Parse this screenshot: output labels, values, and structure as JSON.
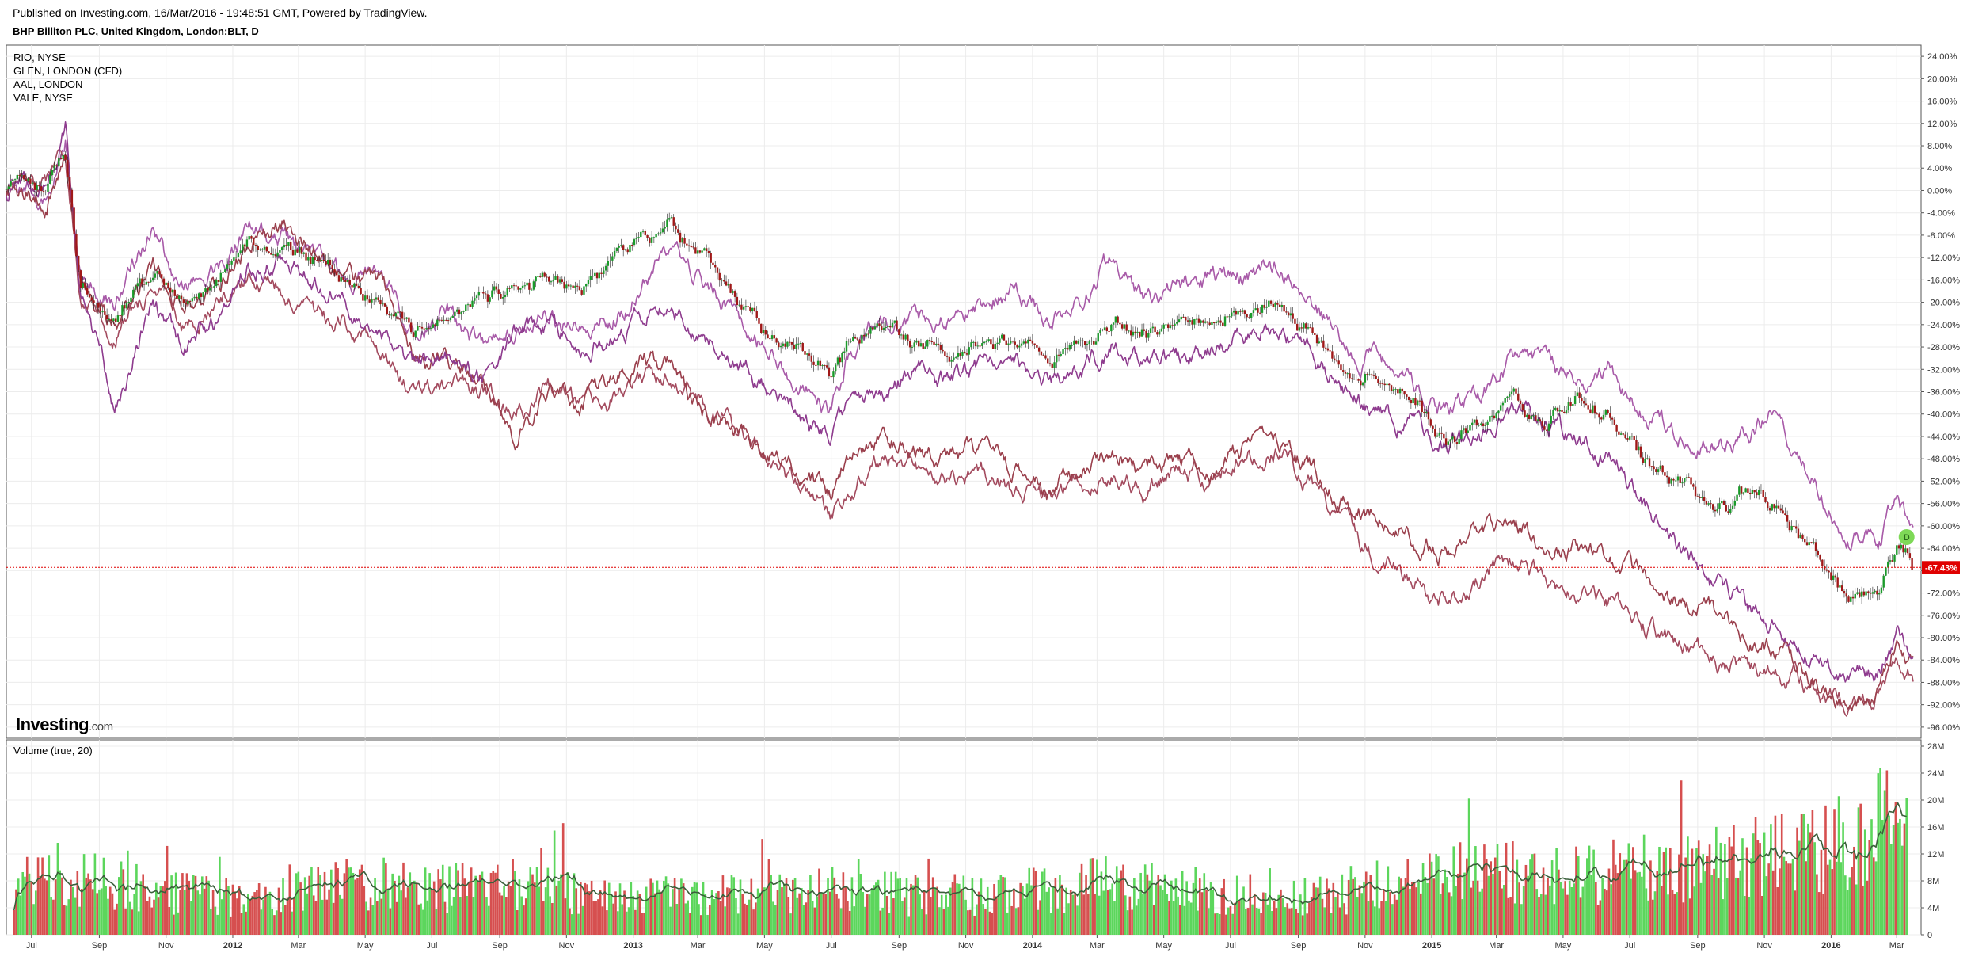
{
  "header": {
    "published": "Published on Investing.com, 16/Mar/2016 - 19:48:51 GMT, Powered by TradingView.",
    "symbol_title": "BHP Billiton PLC, United Kingdom, London:BLT, D"
  },
  "legend": [
    "RIO, NYSE",
    "GLEN, LONDON (CFD)",
    "AAL, LONDON",
    "VALE, NYSE"
  ],
  "volume_label": "Volume (true, 20)",
  "logo": {
    "main": "Investing",
    "suffix": ".com"
  },
  "colors": {
    "up": "#1a9a2a",
    "down": "#a01818",
    "vol_up": "#5cd65c",
    "vol_down": "#d64f4f",
    "ma": "#3a5f3a",
    "rio": "#a85aa8",
    "vale": "#8e3b8e",
    "glen": "#a34a5e",
    "aal": "#9a3f4c",
    "grid": "#ececec",
    "last_marker": "#e00000",
    "dividend": "#7ed957"
  },
  "last_value_label": "-67.43%",
  "dividend_marker": "D",
  "chart_data": [
    {
      "type": "line",
      "title": "BHP Billiton PLC, United Kingdom, London:BLT, D",
      "x_axis": {
        "tick_labels": [
          "Jul",
          "Sep",
          "Nov",
          "2012",
          "Mar",
          "May",
          "Jul",
          "Sep",
          "Nov",
          "2013",
          "Mar",
          "May",
          "Jul",
          "Sep",
          "Nov",
          "2014",
          "Mar",
          "May",
          "Jul",
          "Sep",
          "Nov",
          "2015",
          "Mar",
          "May",
          "Jul",
          "Sep",
          "Nov",
          "2016",
          "Mar"
        ],
        "range": [
          "2011-06-08",
          "2016-03-16"
        ]
      },
      "y_axis": {
        "unit": "%",
        "ylim": [
          -98,
          26
        ],
        "tick_labels": [
          "24.00%",
          "20.00%",
          "16.00%",
          "12.00%",
          "8.00%",
          "4.00%",
          "0.00%",
          "-4.00%",
          "-8.00%",
          "-12.00%",
          "-16.00%",
          "-20.00%",
          "-24.00%",
          "-28.00%",
          "-32.00%",
          "-36.00%",
          "-40.00%",
          "-44.00%",
          "-48.00%",
          "-52.00%",
          "-56.00%",
          "-60.00%",
          "-64.00%",
          "-68.00%",
          "-72.00%",
          "-76.00%",
          "-80.00%",
          "-84.00%",
          "-88.00%",
          "-92.00%",
          "-96.00%"
        ]
      },
      "grid": true,
      "legend_position": "top-left",
      "series": [
        {
          "name": "BLT",
          "style": "candlestick",
          "dates": [
            "2011-06-08",
            "2011-07-15",
            "2011-08-01",
            "2011-08-15",
            "2011-09-15",
            "2011-10-20",
            "2011-11-15",
            "2011-12-15",
            "2012-01-15",
            "2012-02-15",
            "2012-03-15",
            "2012-04-15",
            "2012-05-15",
            "2012-06-15",
            "2012-07-15",
            "2012-08-15",
            "2012-09-15",
            "2012-10-15",
            "2012-11-15",
            "2012-12-15",
            "2013-01-15",
            "2013-02-05",
            "2013-02-20",
            "2013-03-15",
            "2013-04-15",
            "2013-05-15",
            "2013-06-15",
            "2013-07-01",
            "2013-07-15",
            "2013-08-15",
            "2013-09-15",
            "2013-10-15",
            "2013-11-15",
            "2013-12-15",
            "2014-01-15",
            "2014-02-15",
            "2014-03-15",
            "2014-04-15",
            "2014-05-15",
            "2014-06-15",
            "2014-07-15",
            "2014-08-15",
            "2014-09-15",
            "2014-10-15",
            "2014-11-15",
            "2014-12-15",
            "2015-01-15",
            "2015-02-15",
            "2015-03-15",
            "2015-04-15",
            "2015-05-15",
            "2015-06-15",
            "2015-07-15",
            "2015-08-15",
            "2015-09-15",
            "2015-10-15",
            "2015-11-15",
            "2015-12-15",
            "2016-01-20",
            "2016-02-15",
            "2016-03-01",
            "2016-03-16"
          ],
          "values": [
            1,
            0,
            6,
            -18,
            -22,
            -15,
            -20,
            -16,
            -9,
            -10,
            -12,
            -17,
            -20,
            -25,
            -23,
            -20,
            -18,
            -15,
            -17,
            -12,
            -8,
            -6,
            -10,
            -14,
            -22,
            -27,
            -30,
            -33,
            -28,
            -25,
            -26,
            -29,
            -28,
            -26,
            -30,
            -28,
            -24,
            -25,
            -23,
            -24,
            -22,
            -20,
            -26,
            -32,
            -34,
            -38,
            -45,
            -41,
            -36,
            -42,
            -38,
            -40,
            -48,
            -52,
            -57,
            -54,
            -56,
            -64,
            -73,
            -70,
            -63,
            -67.43
          ]
        },
        {
          "name": "RIO, NYSE",
          "style": "line",
          "dates": [
            "2011-06-08",
            "2011-07-15",
            "2011-08-01",
            "2011-08-15",
            "2011-09-15",
            "2011-10-20",
            "2011-11-15",
            "2011-12-15",
            "2012-01-15",
            "2012-02-15",
            "2012-03-15",
            "2012-04-15",
            "2012-05-15",
            "2012-06-15",
            "2012-07-15",
            "2012-08-15",
            "2012-09-15",
            "2012-10-15",
            "2012-11-15",
            "2012-12-15",
            "2013-01-15",
            "2013-02-05",
            "2013-02-20",
            "2013-03-15",
            "2013-04-15",
            "2013-05-15",
            "2013-06-15",
            "2013-07-01",
            "2013-07-15",
            "2013-08-15",
            "2013-09-15",
            "2013-10-15",
            "2013-11-15",
            "2013-12-15",
            "2014-01-15",
            "2014-02-15",
            "2014-03-15",
            "2014-04-15",
            "2014-05-15",
            "2014-06-15",
            "2014-07-15",
            "2014-08-15",
            "2014-09-15",
            "2014-10-15",
            "2014-11-15",
            "2014-12-15",
            "2015-01-15",
            "2015-02-15",
            "2015-03-15",
            "2015-04-15",
            "2015-05-15",
            "2015-06-15",
            "2015-07-15",
            "2015-08-15",
            "2015-09-15",
            "2015-10-15",
            "2015-11-15",
            "2015-12-15",
            "2016-01-20",
            "2016-02-15",
            "2016-03-01",
            "2016-03-16"
          ],
          "values": [
            0,
            -1,
            10,
            -15,
            -20,
            -8,
            -18,
            -15,
            -7,
            -8,
            -13,
            -16,
            -14,
            -26,
            -22,
            -28,
            -26,
            -22,
            -25,
            -22,
            -16,
            -10,
            -14,
            -18,
            -24,
            -32,
            -36,
            -39,
            -30,
            -24,
            -23,
            -22,
            -20,
            -18,
            -22,
            -20,
            -12,
            -20,
            -18,
            -16,
            -15,
            -14,
            -20,
            -28,
            -30,
            -34,
            -40,
            -36,
            -30,
            -32,
            -34,
            -32,
            -40,
            -44,
            -46,
            -44,
            -40,
            -52,
            -62,
            -62,
            -56,
            -61
          ]
        },
        {
          "name": "GLEN, LONDON (CFD)",
          "style": "line",
          "dates": [
            "2011-06-08",
            "2011-07-15",
            "2011-08-01",
            "2011-08-15",
            "2011-09-15",
            "2011-10-20",
            "2011-11-15",
            "2011-12-15",
            "2012-01-15",
            "2012-02-15",
            "2012-03-15",
            "2012-04-15",
            "2012-05-15",
            "2012-06-15",
            "2012-07-15",
            "2012-08-15",
            "2012-09-15",
            "2012-10-15",
            "2012-11-15",
            "2012-12-15",
            "2013-01-15",
            "2013-02-05",
            "2013-02-20",
            "2013-03-15",
            "2013-04-15",
            "2013-05-15",
            "2013-06-15",
            "2013-07-01",
            "2013-07-15",
            "2013-08-15",
            "2013-09-15",
            "2013-10-15",
            "2013-11-15",
            "2013-12-15",
            "2014-01-15",
            "2014-02-15",
            "2014-03-15",
            "2014-04-15",
            "2014-05-15",
            "2014-06-15",
            "2014-07-15",
            "2014-08-15",
            "2014-09-15",
            "2014-10-15",
            "2014-11-15",
            "2014-12-15",
            "2015-01-15",
            "2015-02-15",
            "2015-03-15",
            "2015-04-15",
            "2015-05-15",
            "2015-06-15",
            "2015-07-15",
            "2015-08-15",
            "2015-09-15",
            "2015-10-15",
            "2015-11-15",
            "2015-12-15",
            "2016-01-20",
            "2016-02-15",
            "2016-03-01",
            "2016-03-16"
          ],
          "values": [
            0,
            2,
            5,
            -20,
            -26,
            -17,
            -24,
            -22,
            -15,
            -18,
            -22,
            -24,
            -28,
            -38,
            -34,
            -36,
            -40,
            -35,
            -39,
            -37,
            -32,
            -33,
            -36,
            -40,
            -44,
            -50,
            -55,
            -58,
            -55,
            -48,
            -49,
            -52,
            -50,
            -54,
            -55,
            -52,
            -50,
            -54,
            -50,
            -52,
            -48,
            -47,
            -53,
            -60,
            -66,
            -70,
            -74,
            -70,
            -67,
            -68,
            -72,
            -74,
            -78,
            -81,
            -84,
            -86,
            -86,
            -89,
            -92,
            -90,
            -82,
            -87
          ]
        },
        {
          "name": "AAL, LONDON",
          "style": "line",
          "dates": [
            "2011-06-08",
            "2011-07-15",
            "2011-08-01",
            "2011-08-15",
            "2011-09-15",
            "2011-10-20",
            "2011-11-15",
            "2011-12-15",
            "2012-01-15",
            "2012-02-15",
            "2012-03-15",
            "2012-04-15",
            "2012-05-15",
            "2012-06-15",
            "2012-07-15",
            "2012-08-15",
            "2012-09-15",
            "2012-10-15",
            "2012-11-15",
            "2012-12-15",
            "2013-01-15",
            "2013-02-05",
            "2013-02-20",
            "2013-03-15",
            "2013-04-15",
            "2013-05-15",
            "2013-06-15",
            "2013-07-01",
            "2013-07-15",
            "2013-08-15",
            "2013-09-15",
            "2013-10-15",
            "2013-11-15",
            "2013-12-15",
            "2014-01-15",
            "2014-02-15",
            "2014-03-15",
            "2014-04-15",
            "2014-05-15",
            "2014-06-15",
            "2014-07-15",
            "2014-08-15",
            "2014-09-15",
            "2014-10-15",
            "2014-11-15",
            "2014-12-15",
            "2015-01-15",
            "2015-02-15",
            "2015-03-15",
            "2015-04-15",
            "2015-05-15",
            "2015-06-15",
            "2015-07-15",
            "2015-08-15",
            "2015-09-15",
            "2015-10-15",
            "2015-11-15",
            "2015-12-15",
            "2016-01-20",
            "2016-02-15",
            "2016-03-01",
            "2016-03-16"
          ],
          "values": [
            0,
            -2,
            8,
            -17,
            -24,
            -14,
            -21,
            -18,
            -10,
            -6,
            -11,
            -15,
            -16,
            -30,
            -30,
            -34,
            -45,
            -36,
            -38,
            -34,
            -30,
            -32,
            -38,
            -40,
            -45,
            -48,
            -52,
            -55,
            -48,
            -44,
            -46,
            -48,
            -46,
            -50,
            -54,
            -50,
            -46,
            -50,
            -48,
            -50,
            -46,
            -46,
            -50,
            -56,
            -58,
            -62,
            -66,
            -62,
            -58,
            -64,
            -64,
            -66,
            -70,
            -74,
            -76,
            -80,
            -82,
            -88,
            -92,
            -90,
            -80,
            -84
          ]
        },
        {
          "name": "VALE, NYSE",
          "style": "line",
          "dates": [
            "2011-06-08",
            "2011-07-15",
            "2011-08-01",
            "2011-08-15",
            "2011-09-15",
            "2011-10-20",
            "2011-11-15",
            "2011-12-15",
            "2012-01-15",
            "2012-02-15",
            "2012-03-15",
            "2012-04-15",
            "2012-05-15",
            "2012-06-15",
            "2012-07-15",
            "2012-08-15",
            "2012-09-15",
            "2012-10-15",
            "2012-11-15",
            "2012-12-15",
            "2013-01-15",
            "2013-02-05",
            "2013-02-20",
            "2013-03-15",
            "2013-04-15",
            "2013-05-15",
            "2013-06-15",
            "2013-07-01",
            "2013-07-15",
            "2013-08-15",
            "2013-09-15",
            "2013-10-15",
            "2013-11-15",
            "2013-12-15",
            "2014-01-15",
            "2014-02-15",
            "2014-03-15",
            "2014-04-15",
            "2014-05-15",
            "2014-06-15",
            "2014-07-15",
            "2014-08-15",
            "2014-09-15",
            "2014-10-15",
            "2014-11-15",
            "2014-12-15",
            "2015-01-15",
            "2015-02-15",
            "2015-03-15",
            "2015-04-15",
            "2015-05-15",
            "2015-06-15",
            "2015-07-15",
            "2015-08-15",
            "2015-09-15",
            "2015-10-15",
            "2015-11-15",
            "2015-12-15",
            "2016-01-20",
            "2016-02-15",
            "2016-03-01",
            "2016-03-16"
          ],
          "values": [
            0,
            2,
            12,
            -18,
            -38,
            -20,
            -28,
            -24,
            -14,
            -12,
            -16,
            -22,
            -24,
            -32,
            -30,
            -34,
            -26,
            -24,
            -28,
            -26,
            -22,
            -20,
            -24,
            -28,
            -32,
            -38,
            -42,
            -44,
            -40,
            -36,
            -32,
            -34,
            -32,
            -30,
            -34,
            -32,
            -28,
            -30,
            -30,
            -28,
            -26,
            -24,
            -30,
            -36,
            -40,
            -42,
            -46,
            -44,
            -40,
            -42,
            -44,
            -48,
            -56,
            -64,
            -70,
            -74,
            -80,
            -84,
            -88,
            -86,
            -80,
            -82
          ]
        }
      ]
    },
    {
      "type": "bar",
      "title": "Volume (true, 20)",
      "y_axis": {
        "ylim": [
          0,
          28
        ],
        "unit": "M",
        "tick_labels": [
          "28M",
          "24M",
          "20M",
          "16M",
          "12M",
          "8M",
          "4M",
          "0"
        ]
      },
      "x_axis": {
        "range": [
          "2011-06-08",
          "2016-03-16"
        ]
      },
      "series": [
        {
          "name": "Volume",
          "style": "bar",
          "dates": [
            "2011-06-15",
            "2011-08-15",
            "2011-10-15",
            "2011-12-15",
            "2012-01-20",
            "2012-03-15",
            "2012-05-15",
            "2012-07-15",
            "2012-09-15",
            "2012-11-15",
            "2013-01-15",
            "2013-03-15",
            "2013-05-15",
            "2013-07-15",
            "2013-09-15",
            "2013-11-15",
            "2014-01-15",
            "2014-03-15",
            "2014-05-15",
            "2014-07-15",
            "2014-09-15",
            "2014-11-15",
            "2015-01-15",
            "2015-03-15",
            "2015-05-15",
            "2015-07-15",
            "2015-09-15",
            "2015-11-15",
            "2016-01-15",
            "2016-02-15",
            "2016-03-10"
          ],
          "values": [
            8,
            9,
            7,
            6,
            5,
            7,
            8,
            7,
            8,
            6,
            6,
            6,
            6,
            7,
            6,
            6,
            7,
            8,
            7,
            6,
            6,
            7,
            9,
            10,
            9,
            10,
            11,
            12,
            14,
            17,
            15
          ]
        },
        {
          "name": "MA 20",
          "style": "line",
          "dates": [
            "2011-06-15",
            "2011-08-15",
            "2011-10-15",
            "2011-12-15",
            "2012-01-20",
            "2012-03-15",
            "2012-05-15",
            "2012-07-15",
            "2012-09-15",
            "2012-11-15",
            "2013-01-15",
            "2013-03-15",
            "2013-05-15",
            "2013-07-15",
            "2013-09-15",
            "2013-11-15",
            "2014-01-15",
            "2014-03-15",
            "2014-05-15",
            "2014-07-15",
            "2014-09-15",
            "2014-11-15",
            "2015-01-15",
            "2015-03-15",
            "2015-05-15",
            "2015-07-15",
            "2015-09-15",
            "2015-11-15",
            "2016-01-15",
            "2016-02-15",
            "2016-03-10"
          ],
          "values": [
            8,
            9,
            7,
            6,
            5,
            7,
            8,
            7,
            8,
            6,
            6,
            6,
            6,
            7,
            6,
            6,
            7,
            8,
            7,
            6,
            6,
            7,
            9,
            10,
            9,
            10,
            11,
            12,
            14,
            17,
            15
          ]
        }
      ]
    }
  ]
}
